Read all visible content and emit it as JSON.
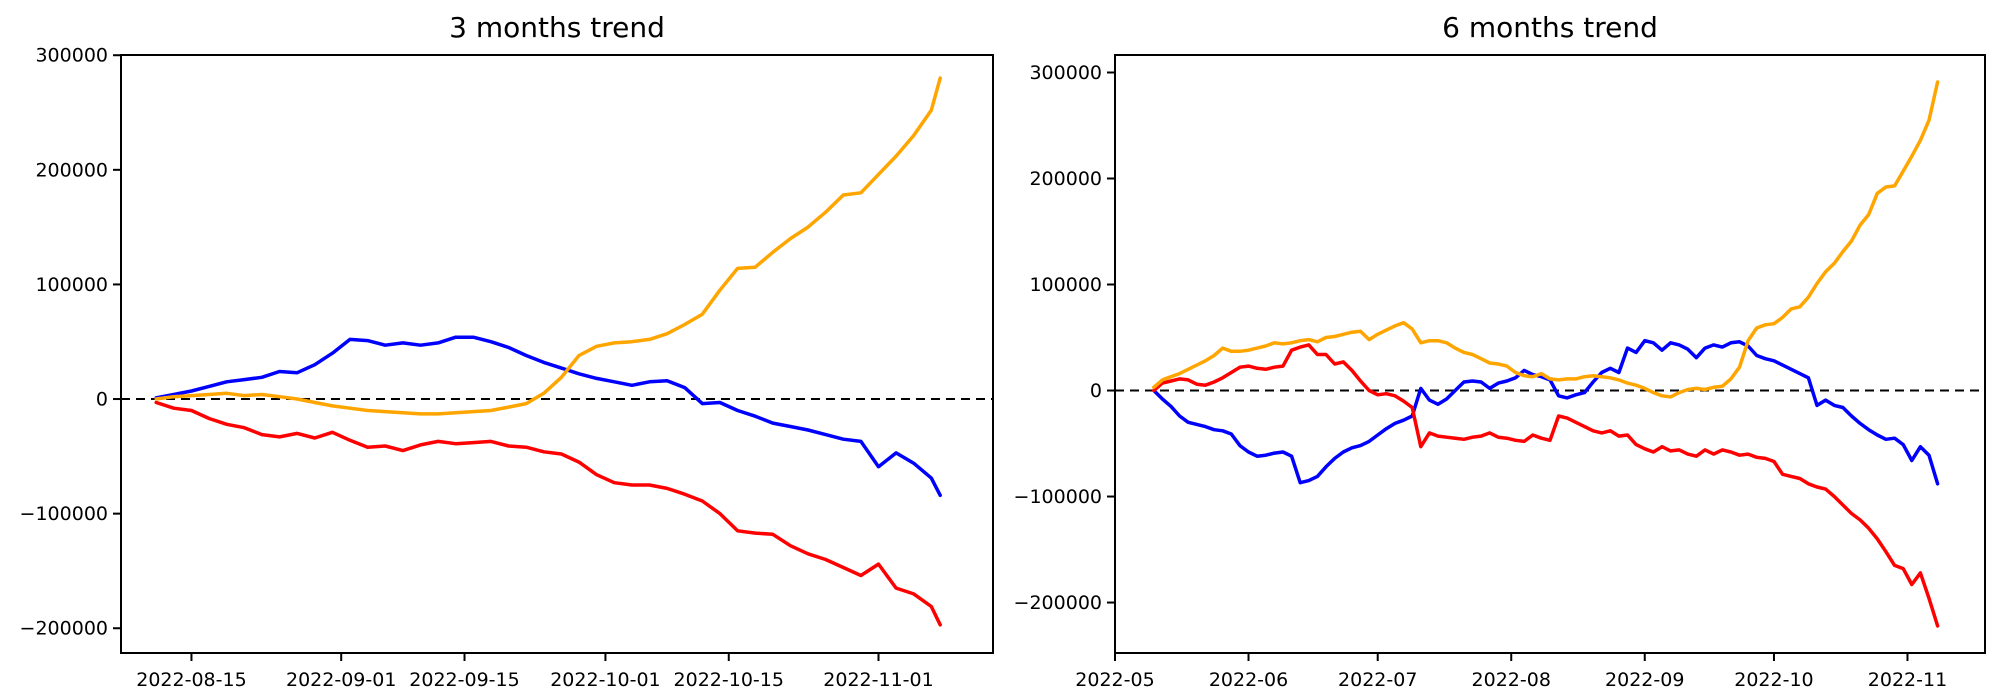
{
  "figure": {
    "background": "#ffffff",
    "text_color": "#000000",
    "axis_color": "#000000"
  },
  "chart_data": [
    {
      "type": "line",
      "title": "3 months trend",
      "xlabel": "",
      "ylabel": "",
      "grid": false,
      "legend": null,
      "zero_line": {
        "style": "dashed",
        "color": "#000000",
        "value": 0
      },
      "xlim": [
        "2022-08-07",
        "2022-11-14"
      ],
      "ylim": [
        -221600,
        300200
      ],
      "y_ticks": [
        {
          "value": 300000,
          "label": "300000"
        },
        {
          "value": 200000,
          "label": "200000"
        },
        {
          "value": 100000,
          "label": "100000"
        },
        {
          "value": 0,
          "label": "0"
        },
        {
          "value": -100000,
          "label": "−100000"
        },
        {
          "value": -200000,
          "label": "−200000"
        }
      ],
      "x_ticks": [
        {
          "date": "2022-08-15",
          "label": "2022-08-15"
        },
        {
          "date": "2022-09-01",
          "label": "2022-09-01"
        },
        {
          "date": "2022-09-15",
          "label": "2022-09-15"
        },
        {
          "date": "2022-10-01",
          "label": "2022-10-01"
        },
        {
          "date": "2022-10-15",
          "label": "2022-10-15"
        },
        {
          "date": "2022-11-01",
          "label": "2022-11-01"
        }
      ],
      "x": [
        "2022-08-11",
        "2022-08-13",
        "2022-08-15",
        "2022-08-17",
        "2022-08-19",
        "2022-08-21",
        "2022-08-23",
        "2022-08-25",
        "2022-08-27",
        "2022-08-29",
        "2022-08-31",
        "2022-09-02",
        "2022-09-04",
        "2022-09-06",
        "2022-09-08",
        "2022-09-10",
        "2022-09-12",
        "2022-09-14",
        "2022-09-16",
        "2022-09-18",
        "2022-09-20",
        "2022-09-22",
        "2022-09-24",
        "2022-09-26",
        "2022-09-28",
        "2022-09-30",
        "2022-10-02",
        "2022-10-04",
        "2022-10-06",
        "2022-10-08",
        "2022-10-10",
        "2022-10-12",
        "2022-10-14",
        "2022-10-16",
        "2022-10-18",
        "2022-10-20",
        "2022-10-22",
        "2022-10-24",
        "2022-10-26",
        "2022-10-28",
        "2022-10-30",
        "2022-11-01",
        "2022-11-03",
        "2022-11-05",
        "2022-11-07",
        "2022-11-08"
      ],
      "series": [
        {
          "name": "blue",
          "color": "#0000ff",
          "values": [
            1000,
            4000,
            7000,
            11000,
            15000,
            17000,
            19000,
            24000,
            23000,
            30000,
            40000,
            52000,
            51000,
            47000,
            49000,
            47000,
            49000,
            54000,
            54000,
            50000,
            45000,
            38000,
            32000,
            27000,
            22000,
            18000,
            15000,
            12000,
            15000,
            16000,
            10000,
            -4000,
            -3000,
            -10000,
            -15000,
            -21000,
            -24000,
            -27000,
            -31000,
            -35000,
            -37000,
            -59000,
            -47000,
            -56000,
            -69000,
            -84000
          ]
        },
        {
          "name": "red",
          "color": "#ff0000",
          "values": [
            -3000,
            -8000,
            -10000,
            -17000,
            -22000,
            -25000,
            -31000,
            -33000,
            -30000,
            -34000,
            -29000,
            -36000,
            -42000,
            -41000,
            -45000,
            -40000,
            -37000,
            -39000,
            -38000,
            -37000,
            -41000,
            -42000,
            -46000,
            -48000,
            -55000,
            -66000,
            -73000,
            -75000,
            -75000,
            -78000,
            -83000,
            -89000,
            -100000,
            -115000,
            -117000,
            -118000,
            -128000,
            -135000,
            -140000,
            -147000,
            -154000,
            -144000,
            -165000,
            -170000,
            -181000,
            -197000
          ]
        },
        {
          "name": "orange",
          "color": "#ffa500",
          "values": [
            0,
            2000,
            3000,
            4000,
            5000,
            3000,
            4000,
            2000,
            0,
            -3000,
            -6000,
            -8000,
            -10000,
            -11000,
            -12000,
            -13000,
            -13000,
            -12000,
            -11000,
            -10000,
            -7000,
            -4000,
            5000,
            19000,
            38000,
            46000,
            49000,
            50000,
            52000,
            57000,
            65000,
            74000,
            95000,
            114000,
            115000,
            128000,
            140000,
            150000,
            163000,
            178000,
            180000,
            196000,
            212000,
            230000,
            252000,
            280000
          ]
        }
      ]
    },
    {
      "type": "line",
      "title": "6 months trend",
      "xlabel": "",
      "ylabel": "",
      "grid": false,
      "legend": null,
      "zero_line": {
        "style": "dashed",
        "color": "#000000",
        "value": 0
      },
      "xlim": [
        "2022-05-01",
        "2022-11-19"
      ],
      "ylim": [
        -247600,
        316500
      ],
      "y_ticks": [
        {
          "value": 300000,
          "label": "300000"
        },
        {
          "value": 200000,
          "label": "200000"
        },
        {
          "value": 100000,
          "label": "100000"
        },
        {
          "value": 0,
          "label": "0"
        },
        {
          "value": -100000,
          "label": "−100000"
        },
        {
          "value": -200000,
          "label": "−200000"
        }
      ],
      "x_ticks": [
        {
          "date": "2022-05-01",
          "label": "2022-05"
        },
        {
          "date": "2022-06-01",
          "label": "2022-06"
        },
        {
          "date": "2022-07-01",
          "label": "2022-07"
        },
        {
          "date": "2022-08-01",
          "label": "2022-08"
        },
        {
          "date": "2022-09-01",
          "label": "2022-09"
        },
        {
          "date": "2022-10-01",
          "label": "2022-10"
        },
        {
          "date": "2022-11-01",
          "label": "2022-11"
        }
      ],
      "x": [
        "2022-05-10",
        "2022-05-12",
        "2022-05-14",
        "2022-05-16",
        "2022-05-18",
        "2022-05-20",
        "2022-05-22",
        "2022-05-24",
        "2022-05-26",
        "2022-05-28",
        "2022-05-30",
        "2022-06-01",
        "2022-06-03",
        "2022-06-05",
        "2022-06-07",
        "2022-06-09",
        "2022-06-11",
        "2022-06-13",
        "2022-06-15",
        "2022-06-17",
        "2022-06-19",
        "2022-06-21",
        "2022-06-23",
        "2022-06-25",
        "2022-06-27",
        "2022-06-29",
        "2022-07-01",
        "2022-07-03",
        "2022-07-05",
        "2022-07-07",
        "2022-07-09",
        "2022-07-11",
        "2022-07-13",
        "2022-07-15",
        "2022-07-17",
        "2022-07-19",
        "2022-07-21",
        "2022-07-23",
        "2022-07-25",
        "2022-07-27",
        "2022-07-29",
        "2022-07-31",
        "2022-08-02",
        "2022-08-04",
        "2022-08-06",
        "2022-08-08",
        "2022-08-10",
        "2022-08-12",
        "2022-08-14",
        "2022-08-16",
        "2022-08-18",
        "2022-08-20",
        "2022-08-22",
        "2022-08-24",
        "2022-08-26",
        "2022-08-28",
        "2022-08-30",
        "2022-09-01",
        "2022-09-03",
        "2022-09-05",
        "2022-09-07",
        "2022-09-09",
        "2022-09-11",
        "2022-09-13",
        "2022-09-15",
        "2022-09-17",
        "2022-09-19",
        "2022-09-21",
        "2022-09-23",
        "2022-09-25",
        "2022-09-27",
        "2022-09-29",
        "2022-10-01",
        "2022-10-03",
        "2022-10-05",
        "2022-10-07",
        "2022-10-09",
        "2022-10-11",
        "2022-10-13",
        "2022-10-15",
        "2022-10-17",
        "2022-10-19",
        "2022-10-21",
        "2022-10-23",
        "2022-10-25",
        "2022-10-27",
        "2022-10-29",
        "2022-10-31",
        "2022-11-02",
        "2022-11-04",
        "2022-11-06",
        "2022-11-08"
      ],
      "series": [
        {
          "name": "blue",
          "color": "#0000ff",
          "values": [
            0,
            -8000,
            -15000,
            -24000,
            -30000,
            -32000,
            -34000,
            -37000,
            -38000,
            -41000,
            -52000,
            -58000,
            -62000,
            -61000,
            -59000,
            -58000,
            -62000,
            -87000,
            -85000,
            -81000,
            -72000,
            -64000,
            -58000,
            -54000,
            -52000,
            -48000,
            -42000,
            -36000,
            -31000,
            -28000,
            -24000,
            2000,
            -9000,
            -13000,
            -8000,
            0,
            8000,
            9000,
            8000,
            2000,
            7000,
            9000,
            12000,
            19000,
            15000,
            13000,
            10000,
            -5000,
            -7000,
            -4000,
            -2000,
            8000,
            17000,
            21000,
            17000,
            40000,
            36000,
            47000,
            45000,
            38000,
            45000,
            43000,
            39000,
            31000,
            40000,
            43000,
            41000,
            45000,
            46000,
            42000,
            33000,
            30000,
            28000,
            24000,
            20000,
            16000,
            12000,
            -14000,
            -9000,
            -14000,
            -16000,
            -24000,
            -31000,
            -37000,
            -42000,
            -46000,
            -45000,
            -51000,
            -66000,
            -53000,
            -61000,
            -88000
          ]
        },
        {
          "name": "red",
          "color": "#ff0000",
          "values": [
            0,
            7000,
            9000,
            11000,
            10000,
            6000,
            5000,
            8000,
            12000,
            17000,
            22000,
            23000,
            21000,
            20000,
            22000,
            23000,
            38000,
            41000,
            43000,
            34000,
            34000,
            25000,
            27000,
            19000,
            9000,
            0,
            -4000,
            -3000,
            -5000,
            -10000,
            -16000,
            -53000,
            -40000,
            -43000,
            -44000,
            -45000,
            -46000,
            -44000,
            -43000,
            -40000,
            -44000,
            -45000,
            -47000,
            -48000,
            -42000,
            -45000,
            -47000,
            -24000,
            -26000,
            -30000,
            -34000,
            -38000,
            -40000,
            -38000,
            -43000,
            -42000,
            -51000,
            -55000,
            -58000,
            -53000,
            -57000,
            -56000,
            -60000,
            -62000,
            -56000,
            -60000,
            -56000,
            -58000,
            -61000,
            -60000,
            -63000,
            -64000,
            -67000,
            -79000,
            -81000,
            -83000,
            -88000,
            -91000,
            -93000,
            -100000,
            -108000,
            -116000,
            -122000,
            -130000,
            -140000,
            -152000,
            -165000,
            -168000,
            -183000,
            -172000,
            -196000,
            -222000
          ]
        },
        {
          "name": "orange",
          "color": "#ffa500",
          "values": [
            3000,
            10000,
            13000,
            16000,
            20000,
            24000,
            28000,
            33000,
            40000,
            37000,
            37000,
            38000,
            40000,
            42000,
            45000,
            44000,
            45000,
            47000,
            48000,
            46000,
            50000,
            51000,
            53000,
            55000,
            56000,
            48000,
            53000,
            57000,
            61000,
            64000,
            58000,
            45000,
            47000,
            47000,
            45000,
            40000,
            36000,
            34000,
            30000,
            26000,
            25000,
            23000,
            17000,
            14000,
            13000,
            16000,
            11000,
            10000,
            11000,
            11000,
            13000,
            14000,
            13000,
            12000,
            10000,
            7000,
            5000,
            2000,
            -2000,
            -5000,
            -6000,
            -2000,
            1000,
            2000,
            1000,
            3000,
            4000,
            11000,
            22000,
            47000,
            59000,
            62000,
            63000,
            69000,
            77000,
            79000,
            88000,
            101000,
            112000,
            120000,
            131000,
            141000,
            156000,
            166000,
            186000,
            192000,
            193000,
            207000,
            221000,
            236000,
            255000,
            291000
          ]
        }
      ]
    }
  ]
}
